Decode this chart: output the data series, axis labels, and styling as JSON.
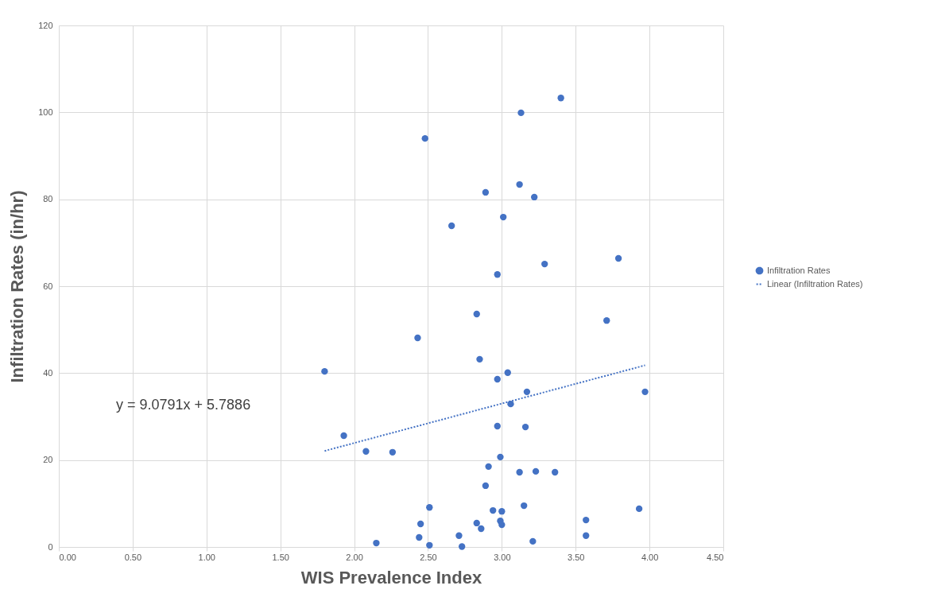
{
  "chart_data": {
    "type": "scatter",
    "xlabel": "WIS Prevalence Index",
    "ylabel": "Infiltration Rates (in/hr)",
    "xlim": [
      0,
      4.5
    ],
    "xticks": [
      {
        "value": 0,
        "label": "0.00"
      },
      {
        "value": 0.5,
        "label": "0.50"
      },
      {
        "value": 1,
        "label": "1.00"
      },
      {
        "value": 1.5,
        "label": "1.50"
      },
      {
        "value": 2,
        "label": "2.00"
      },
      {
        "value": 2.5,
        "label": "2.50"
      },
      {
        "value": 3,
        "label": "3.00"
      },
      {
        "value": 3.5,
        "label": "3.50"
      },
      {
        "value": 4,
        "label": "4.00"
      },
      {
        "value": 4.5,
        "label": "4.50"
      }
    ],
    "ylim": [
      0,
      120
    ],
    "yticks": [
      0,
      20,
      40,
      60,
      80,
      100,
      120
    ],
    "grid": true,
    "legend": "right",
    "annotations": [
      "y = 9.0791x + 5.7886"
    ],
    "series": [
      {
        "name": "Infiltration Rates",
        "marker": "circle",
        "color": "#4472c4",
        "x": [
          1.8,
          1.93,
          2.08,
          2.26,
          2.43,
          2.48,
          2.51,
          2.45,
          2.44,
          2.15,
          2.51,
          2.66,
          2.83,
          2.85,
          2.89,
          3.01,
          2.97,
          2.97,
          3.04,
          3.06,
          2.97,
          2.99,
          2.91,
          2.89,
          3.12,
          3.13,
          3.22,
          3.29,
          3.4,
          3.79,
          3.71,
          3.17,
          3.16,
          3.12,
          3.23,
          3.36,
          3.15,
          2.94,
          3.0,
          2.99,
          3.0,
          2.83,
          2.86,
          2.71,
          2.73,
          3.21,
          3.57,
          3.57,
          3.93,
          3.97
        ],
        "values": [
          40.4,
          25.6,
          22.0,
          21.8,
          48.1,
          94.0,
          9.1,
          5.3,
          2.2,
          0.9,
          0.4,
          73.9,
          53.6,
          43.2,
          81.6,
          75.9,
          62.7,
          38.6,
          40.1,
          32.9,
          27.8,
          20.7,
          18.5,
          14.1,
          83.4,
          99.9,
          80.5,
          65.1,
          103.3,
          66.4,
          52.1,
          35.7,
          27.6,
          17.2,
          17.4,
          17.2,
          9.5,
          8.4,
          8.2,
          6.0,
          5.1,
          5.5,
          4.2,
          2.6,
          0.1,
          1.3,
          6.2,
          2.6,
          8.8,
          35.7
        ]
      },
      {
        "name": "Linear (Infiltration Rates)",
        "type": "line",
        "color": "#4472c4",
        "line_style": "dotted",
        "x": [
          1.8,
          3.97
        ],
        "values": [
          22.1,
          41.8
        ]
      }
    ]
  }
}
